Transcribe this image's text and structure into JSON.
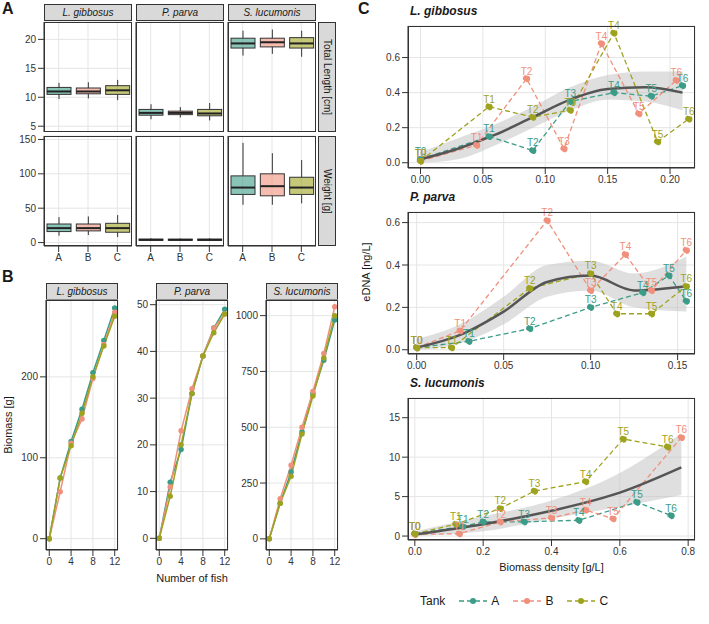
{
  "chart_data": [
    {
      "panel": "A",
      "type": "boxplot",
      "grid": true,
      "categories": [
        "A",
        "B",
        "C"
      ],
      "colors": [
        "#3b9c87",
        "#f0907c",
        "#9ea31f"
      ],
      "columns": [
        "L. gibbosus",
        "P. parva",
        "S. lucumonis"
      ],
      "rows": [
        {
          "title": "Total Length [cm]",
          "ylim": [
            4,
            23
          ],
          "yticks": [
            5,
            10,
            15,
            20
          ],
          "boxes": [
            [
              {
                "min": 9.7,
                "q1": 10.5,
                "median": 11,
                "q3": 11.7,
                "max": 12.5
              },
              {
                "min": 9.8,
                "q1": 10.6,
                "median": 11,
                "q3": 11.6,
                "max": 12.6
              },
              {
                "min": 9.5,
                "q1": 10.5,
                "median": 11.2,
                "q3": 12,
                "max": 13
              }
            ],
            [
              {
                "min": 6.2,
                "q1": 6.9,
                "median": 7.3,
                "q3": 7.9,
                "max": 8.8
              },
              {
                "min": 6.5,
                "q1": 7,
                "median": 7.3,
                "q3": 7.6,
                "max": 8.3
              },
              {
                "min": 6,
                "q1": 6.8,
                "median": 7.2,
                "q3": 7.9,
                "max": 9
              }
            ],
            [
              {
                "min": 17.2,
                "q1": 18.5,
                "median": 19.3,
                "q3": 20.2,
                "max": 21.5
              },
              {
                "min": 17.5,
                "q1": 18.7,
                "median": 19.5,
                "q3": 20.2,
                "max": 21.7
              },
              {
                "min": 17,
                "q1": 18.5,
                "median": 19.3,
                "q3": 20.3,
                "max": 21.5
              }
            ]
          ]
        },
        {
          "title": "Weight [g]",
          "ylim": [
            -5,
            155
          ],
          "yticks": [
            0,
            50,
            100,
            150
          ],
          "boxes": [
            [
              {
                "min": 10,
                "q1": 16,
                "median": 21,
                "q3": 27,
                "max": 37
              },
              {
                "min": 11,
                "q1": 17,
                "median": 21,
                "q3": 27,
                "max": 38
              },
              {
                "min": 8,
                "q1": 15,
                "median": 21,
                "q3": 28,
                "max": 40
              }
            ],
            [
              {
                "min": 2.5,
                "q1": 3.3,
                "median": 4,
                "q3": 5,
                "max": 6.2
              },
              {
                "min": 2.6,
                "q1": 3.4,
                "median": 4,
                "q3": 4.9,
                "max": 6
              },
              {
                "min": 2.4,
                "q1": 3.2,
                "median": 4,
                "q3": 5,
                "max": 6.3
              }
            ],
            [
              {
                "min": 55,
                "q1": 70,
                "median": 80,
                "q3": 97,
                "max": 145
              },
              {
                "min": 55,
                "q1": 68,
                "median": 82,
                "q3": 100,
                "max": 130
              },
              {
                "min": 57,
                "q1": 70,
                "median": 80,
                "q3": 95,
                "max": 120
              }
            ]
          ]
        }
      ]
    },
    {
      "panel": "B",
      "type": "line",
      "grid": true,
      "marker": "circle",
      "line_style": "solid",
      "xlabel": "Number of fish",
      "ylabel": "Biomass [g]",
      "xlim": [
        -0.6,
        12.6
      ],
      "xticks": [
        0,
        4,
        8,
        12
      ],
      "colors": [
        "#3b9c87",
        "#f0907c",
        "#9ea31f"
      ],
      "facets": [
        {
          "title": "L. gibbosus",
          "ylim": [
            -14,
            295
          ],
          "yticks": [
            0,
            100,
            200
          ],
          "x": [
            0,
            2,
            4,
            6,
            8,
            10,
            12
          ],
          "series": [
            {
              "values": [
                0,
                75,
                120,
                160,
                205,
                245,
                285
              ]
            },
            {
              "values": [
                0,
                58,
                118,
                148,
                198,
                240,
                280
              ]
            },
            {
              "values": [
                0,
                75,
                115,
                155,
                200,
                238,
                275
              ]
            }
          ]
        },
        {
          "title": "P. parva",
          "ylim": [
            -2.5,
            51
          ],
          "yticks": [
            0,
            10,
            20,
            30,
            40,
            50
          ],
          "x": [
            0,
            2,
            4,
            6,
            8,
            10,
            12
          ],
          "series": [
            {
              "values": [
                0,
                12,
                19,
                31,
                39,
                45,
                49
              ]
            },
            {
              "values": [
                0,
                11,
                23,
                32,
                39,
                45,
                48
              ]
            },
            {
              "values": [
                0,
                9,
                20,
                31,
                39,
                44,
                48
              ]
            }
          ]
        },
        {
          "title": "S. lucumonis",
          "ylim": [
            -50,
            1070
          ],
          "yticks": [
            0,
            250,
            500,
            750,
            1000
          ],
          "x": [
            0,
            2,
            4,
            6,
            8,
            10,
            12
          ],
          "series": [
            {
              "values": [
                0,
                160,
                300,
                480,
                650,
                800,
                980
              ]
            },
            {
              "values": [
                0,
                180,
                330,
                500,
                660,
                830,
                1040
              ]
            },
            {
              "values": [
                0,
                160,
                280,
                470,
                640,
                810,
                1000
              ]
            }
          ]
        }
      ]
    },
    {
      "panel": "C",
      "type": "line",
      "grid": true,
      "marker": "circle",
      "line_style": "dashed",
      "xlabel": "Biomass density [g/L]",
      "ylabel": "eDNA [ng/L]",
      "legend": "bottom",
      "legend_title": "Tank",
      "series": [
        {
          "name": "A",
          "color": "#3b9c87"
        },
        {
          "name": "B",
          "color": "#f0907c"
        },
        {
          "name": "C",
          "color": "#9ea31f"
        }
      ],
      "facets": [
        {
          "title": "L. gibbosus",
          "xlim": [
            -0.01,
            0.22
          ],
          "xticks": [
            {
              "value": 0,
              "label": "0.00"
            },
            0.05,
            {
              "value": 0.1,
              "label": "0.10"
            },
            0.15,
            {
              "value": 0.2,
              "label": "0.20"
            }
          ],
          "ylim": [
            -0.03,
            0.78
          ],
          "yticks": [
            {
              "value": 0,
              "label": "0.0"
            },
            0.2,
            0.4,
            0.6
          ],
          "points": [
            {
              "x": [
                0,
                0.055,
                0.09,
                0.12,
                0.155,
                0.185,
                0.21
              ],
              "values": [
                0.02,
                0.15,
                0.07,
                0.35,
                0.4,
                0.38,
                0.44
              ],
              "point_labels": [
                "T0",
                "T1",
                "T2",
                "T3",
                "T4",
                "T5",
                "T6"
              ]
            },
            {
              "x": [
                0,
                0.045,
                0.085,
                0.115,
                0.145,
                0.175,
                0.205
              ],
              "values": [
                0.01,
                0.1,
                0.48,
                0.08,
                0.68,
                0.28,
                0.47
              ],
              "point_labels": [
                "T0",
                "T1",
                "T2",
                "T3",
                "T4",
                "T5",
                "T6"
              ]
            },
            {
              "x": [
                0,
                0.055,
                0.09,
                0.12,
                0.155,
                0.19,
                0.215
              ],
              "values": [
                0.01,
                0.32,
                0.26,
                0.3,
                0.74,
                0.12,
                0.25
              ],
              "point_labels": [
                "T0",
                "T1",
                "T2",
                "T3",
                "T4",
                "T5",
                "T6"
              ]
            }
          ],
          "fit": {
            "color": "#555555",
            "x": [
              0,
              0.03,
              0.06,
              0.09,
              0.12,
              0.15,
              0.18,
              0.21
            ],
            "values": [
              0.02,
              0.08,
              0.16,
              0.26,
              0.36,
              0.42,
              0.43,
              0.4
            ],
            "lower": [
              0,
              0.02,
              0.1,
              0.2,
              0.3,
              0.36,
              0.35,
              0.3
            ],
            "upper": [
              0.06,
              0.14,
              0.22,
              0.32,
              0.43,
              0.5,
              0.52,
              0.52
            ]
          }
        },
        {
          "title": "P. parva",
          "xlim": [
            -0.005,
            0.16
          ],
          "xticks": [
            {
              "value": 0,
              "label": "0.00"
            },
            0.05,
            {
              "value": 0.1,
              "label": "0.10"
            },
            0.15
          ],
          "ylim": [
            -0.02,
            0.65
          ],
          "yticks": [
            {
              "value": 0,
              "label": "0.0"
            },
            0.2,
            0.4,
            0.6
          ],
          "points": [
            {
              "x": [
                0,
                0.03,
                0.065,
                0.1,
                0.13,
                0.145,
                0.155
              ],
              "values": [
                0.01,
                0.04,
                0.1,
                0.2,
                0.27,
                0.35,
                0.23
              ],
              "point_labels": [
                "T0",
                "T1",
                "T2",
                "T3",
                "T4",
                "T5",
                "T6"
              ]
            },
            {
              "x": [
                0,
                0.025,
                0.075,
                0.1,
                0.12,
                0.135,
                0.155
              ],
              "values": [
                0.01,
                0.09,
                0.61,
                0.28,
                0.45,
                0.28,
                0.47
              ],
              "point_labels": [
                "T0",
                "T1",
                "T2",
                "T3",
                "T4",
                "T5",
                "T6"
              ]
            },
            {
              "x": [
                0,
                0.02,
                0.065,
                0.1,
                0.115,
                0.135,
                0.155
              ],
              "values": [
                0.01,
                0.01,
                0.29,
                0.36,
                0.17,
                0.17,
                0.3
              ],
              "point_labels": [
                "T0",
                "T1",
                "T2",
                "T3",
                "T4",
                "T5",
                "T6"
              ]
            }
          ],
          "fit": {
            "color": "#555555",
            "x": [
              0,
              0.025,
              0.05,
              0.075,
              0.1,
              0.125,
              0.155
            ],
            "values": [
              0.01,
              0.07,
              0.18,
              0.32,
              0.35,
              0.28,
              0.3
            ],
            "lower": [
              0,
              0.03,
              0.12,
              0.25,
              0.28,
              0.2,
              0.18
            ],
            "upper": [
              0.05,
              0.12,
              0.25,
              0.4,
              0.42,
              0.36,
              0.44
            ]
          }
        },
        {
          "title": "S. lucumonis",
          "xlim": [
            -0.02,
            0.82
          ],
          "xticks": [
            {
              "value": 0,
              "label": "0.0"
            },
            0.2,
            0.4,
            0.6,
            0.8
          ],
          "ylim": [
            -0.5,
            17.5
          ],
          "yticks": [
            0,
            5,
            10,
            15
          ],
          "points": [
            {
              "x": [
                0,
                0.14,
                0.2,
                0.32,
                0.48,
                0.65,
                0.75
              ],
              "values": [
                0.3,
                1.2,
                1.8,
                1.8,
                2,
                4.3,
                2.6
              ],
              "point_labels": [
                "T0",
                "T1",
                "T2",
                "T3",
                "T4",
                "T5",
                "T6"
              ]
            },
            {
              "x": [
                0,
                0.13,
                0.25,
                0.4,
                0.5,
                0.58,
                0.78
              ],
              "values": [
                0.2,
                0.3,
                1.8,
                2.3,
                3.3,
                2.2,
                12.5
              ],
              "point_labels": [
                "T0",
                "T1",
                "T2",
                "T3",
                "T4",
                "T5",
                "T6"
              ]
            },
            {
              "x": [
                0,
                0.12,
                0.25,
                0.35,
                0.5,
                0.61,
                0.74
              ],
              "values": [
                0.3,
                1.5,
                3.5,
                5.7,
                6.9,
                12.3,
                11.3
              ],
              "point_labels": [
                "T0",
                "T1",
                "T2",
                "T3",
                "T4",
                "T5",
                "T6"
              ]
            }
          ],
          "fit": {
            "color": "#555555",
            "x": [
              0,
              0.2,
              0.4,
              0.6,
              0.78
            ],
            "values": [
              0.2,
              1.5,
              3.2,
              5.5,
              8.7
            ],
            "lower": [
              0,
              0.6,
              2.2,
              3.7,
              5.2
            ],
            "upper": [
              0.6,
              2.5,
              4.5,
              8,
              13
            ]
          }
        }
      ]
    }
  ]
}
